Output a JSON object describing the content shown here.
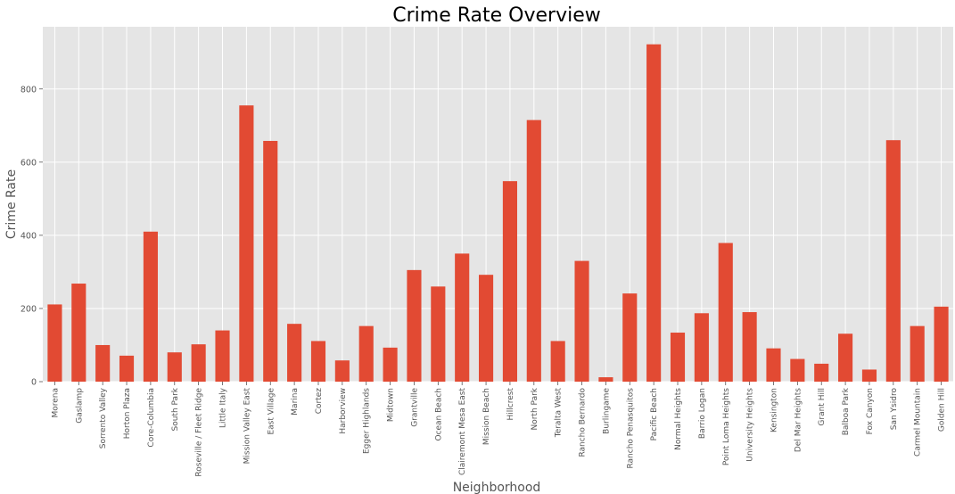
{
  "chart_data": {
    "type": "bar",
    "title": "Crime Rate Overview",
    "xlabel": "Neighborhood",
    "ylabel": "Crime Rate",
    "ylim": [
      0,
      970
    ],
    "yticks": [
      0,
      200,
      400,
      600,
      800
    ],
    "grid": true,
    "legend": "none",
    "categories": [
      "Morena",
      "Gaslamp",
      "Sorrento Valley",
      "Horton Plaza",
      "Core-Columbia",
      "South Park",
      "Roseville / Fleet Ridge",
      "Little Italy",
      "Mission Valley East",
      "East Village",
      "Marina",
      "Cortez",
      "Harborview",
      "Egger Highlands",
      "Midtown",
      "Grantville",
      "Ocean Beach",
      "Clairemont Mesa East",
      "Mission Beach",
      "Hillcrest",
      "North Park",
      "Teralta West",
      "Rancho Bernardo",
      "Burlingame",
      "Rancho Penasquitos",
      "Pacific Beach",
      "Normal Heights",
      "Barrio Logan",
      "Point Loma Heights",
      "University Heights",
      "Kensington",
      "Del Mar Heights",
      "Grant Hill",
      "Balboa Park",
      "Fox Canyon",
      "San Ysidro",
      "Carmel Mountain",
      "Golden Hill"
    ],
    "values": [
      211,
      268,
      100,
      71,
      410,
      80,
      102,
      140,
      755,
      658,
      158,
      111,
      58,
      152,
      93,
      305,
      260,
      350,
      292,
      548,
      715,
      111,
      330,
      12,
      241,
      922,
      134,
      187,
      379,
      190,
      91,
      62,
      49,
      131,
      33,
      660,
      152,
      205
    ],
    "colors": {
      "bar": "#e24a33",
      "background": "#e5e5e5",
      "grid": "#ffffff"
    }
  }
}
